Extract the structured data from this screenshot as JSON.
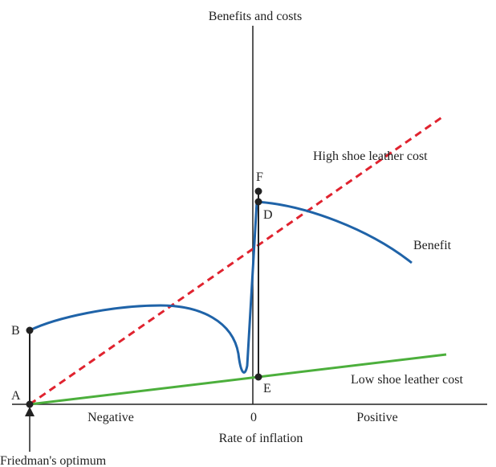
{
  "axes": {
    "y_label": "Benefits and costs",
    "x_label": "Rate of inflation",
    "x_negative": "Negative",
    "x_zero": "0",
    "x_positive": "Positive"
  },
  "curves": {
    "high_cost": "High shoe leather cost",
    "benefit": "Benefit",
    "low_cost": "Low shoe leather cost"
  },
  "points": {
    "a": "A",
    "b": "B",
    "d": "D",
    "e": "E",
    "f": "F"
  },
  "annotation": "Friedman's optimum"
}
